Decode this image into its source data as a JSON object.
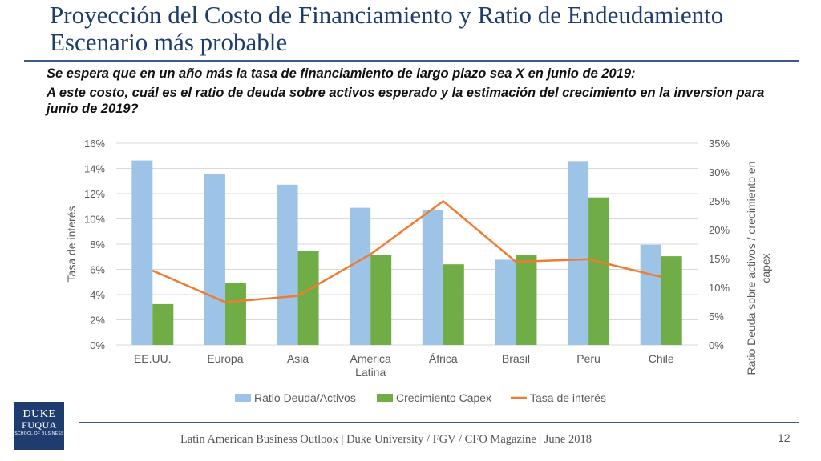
{
  "slide": {
    "title_line1": "Proyección del Costo de Financiamiento y Ratio de Endeudamiento",
    "title_line2": "Escenario más probable",
    "question1": "Se espera que en un año más la tasa de financiamiento de largo plazo sea X en junio de 2019:",
    "question2": "A este costo, cuál es el ratio de deuda sobre activos esperado y la estimación del crecimiento en la inversion para junio de 2019?",
    "footer": "Latin American Business Outlook | Duke University / FGV / CFO Magazine | June 2018",
    "page_number": "12"
  },
  "logo": {
    "line1": "DUKE",
    "line2": "FUQUA",
    "line3": "SCHOOL OF BUSINESS"
  },
  "colors": {
    "bar1": "#9dc3e6",
    "bar2": "#70ad47",
    "line": "#ed7d31",
    "grid": "#d9d9d9",
    "text": "#595959"
  },
  "chart_data": {
    "type": "bar",
    "categories": [
      "EE.UU.",
      "Europa",
      "Asia",
      "América Latina",
      "África",
      "Brasil",
      "Perú",
      "Chile"
    ],
    "series": [
      {
        "name": "Ratio Deuda/Activos",
        "type": "bar",
        "axis": "right",
        "values": [
          32,
          29.7,
          27.8,
          23.8,
          23.4,
          14.8,
          31.9,
          17.4
        ]
      },
      {
        "name": "Crecimiento Capex",
        "type": "bar",
        "axis": "right",
        "values": [
          7.1,
          10.8,
          16.3,
          15.6,
          14.0,
          15.6,
          25.6,
          15.4
        ]
      },
      {
        "name": "Tasa de interés",
        "type": "line",
        "axis": "left",
        "values": [
          5.9,
          3.4,
          3.9,
          7.2,
          11.4,
          6.6,
          6.8,
          5.4
        ]
      }
    ],
    "y_left": {
      "label": "Tasa de interés",
      "min": 0,
      "max": 16,
      "step": 2,
      "ticks": [
        "0%",
        "2%",
        "4%",
        "6%",
        "8%",
        "10%",
        "12%",
        "14%",
        "16%"
      ]
    },
    "y_right": {
      "label": "Ratio Deuda sobre activos / crecimiento en capex",
      "min": 0,
      "max": 35,
      "step": 5,
      "ticks": [
        "0%",
        "5%",
        "10%",
        "15%",
        "20%",
        "25%",
        "30%",
        "35%"
      ]
    },
    "legend": [
      "Ratio Deuda/Activos",
      "Crecimiento Capex",
      "Tasa de interés"
    ],
    "legend_position": "bottom",
    "grid": true
  }
}
